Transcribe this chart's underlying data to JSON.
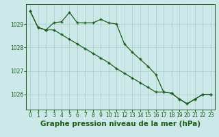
{
  "title": "Graphe pression niveau de la mer (hPa)",
  "background_color": "#cce8e8",
  "grid_color": "#aacccc",
  "line_color": "#1a5c1a",
  "line1_x": [
    0,
    1,
    2,
    3,
    4,
    5,
    6,
    7,
    8,
    9,
    10,
    11,
    12,
    13,
    14,
    15,
    16,
    17,
    18,
    19,
    20,
    21,
    22,
    23
  ],
  "line1_y": [
    1029.55,
    1028.85,
    1028.75,
    1029.05,
    1029.1,
    1029.5,
    1029.05,
    1029.05,
    1029.05,
    1029.2,
    1029.05,
    1029.0,
    1028.15,
    1027.8,
    1027.5,
    1027.2,
    1026.85,
    1026.1,
    1026.05,
    1025.8,
    1025.6,
    1025.8,
    1026.0,
    1026.0
  ],
  "line2_x": [
    0,
    1,
    2,
    3,
    4,
    5,
    6,
    7,
    8,
    9,
    10,
    11,
    12,
    13,
    14,
    15,
    16,
    17,
    18,
    19,
    20,
    21,
    22,
    23
  ],
  "line2_y": [
    1029.55,
    1028.85,
    1028.75,
    1028.75,
    1028.55,
    1028.35,
    1028.15,
    1027.95,
    1027.75,
    1027.55,
    1027.35,
    1027.1,
    1026.9,
    1026.7,
    1026.5,
    1026.3,
    1026.1,
    1026.1,
    1026.05,
    1025.8,
    1025.6,
    1025.8,
    1026.0,
    1026.0
  ],
  "xlim": [
    -0.5,
    23.5
  ],
  "ylim": [
    1025.35,
    1029.85
  ],
  "yticks": [
    1026,
    1027,
    1028,
    1029
  ],
  "xticks": [
    0,
    1,
    2,
    3,
    4,
    5,
    6,
    7,
    8,
    9,
    10,
    11,
    12,
    13,
    14,
    15,
    16,
    17,
    18,
    19,
    20,
    21,
    22,
    23
  ],
  "title_fontsize": 7.5,
  "tick_fontsize": 5.5,
  "marker": "+",
  "linewidth": 0.9,
  "markersize": 3.5,
  "markeredgewidth": 1.0
}
